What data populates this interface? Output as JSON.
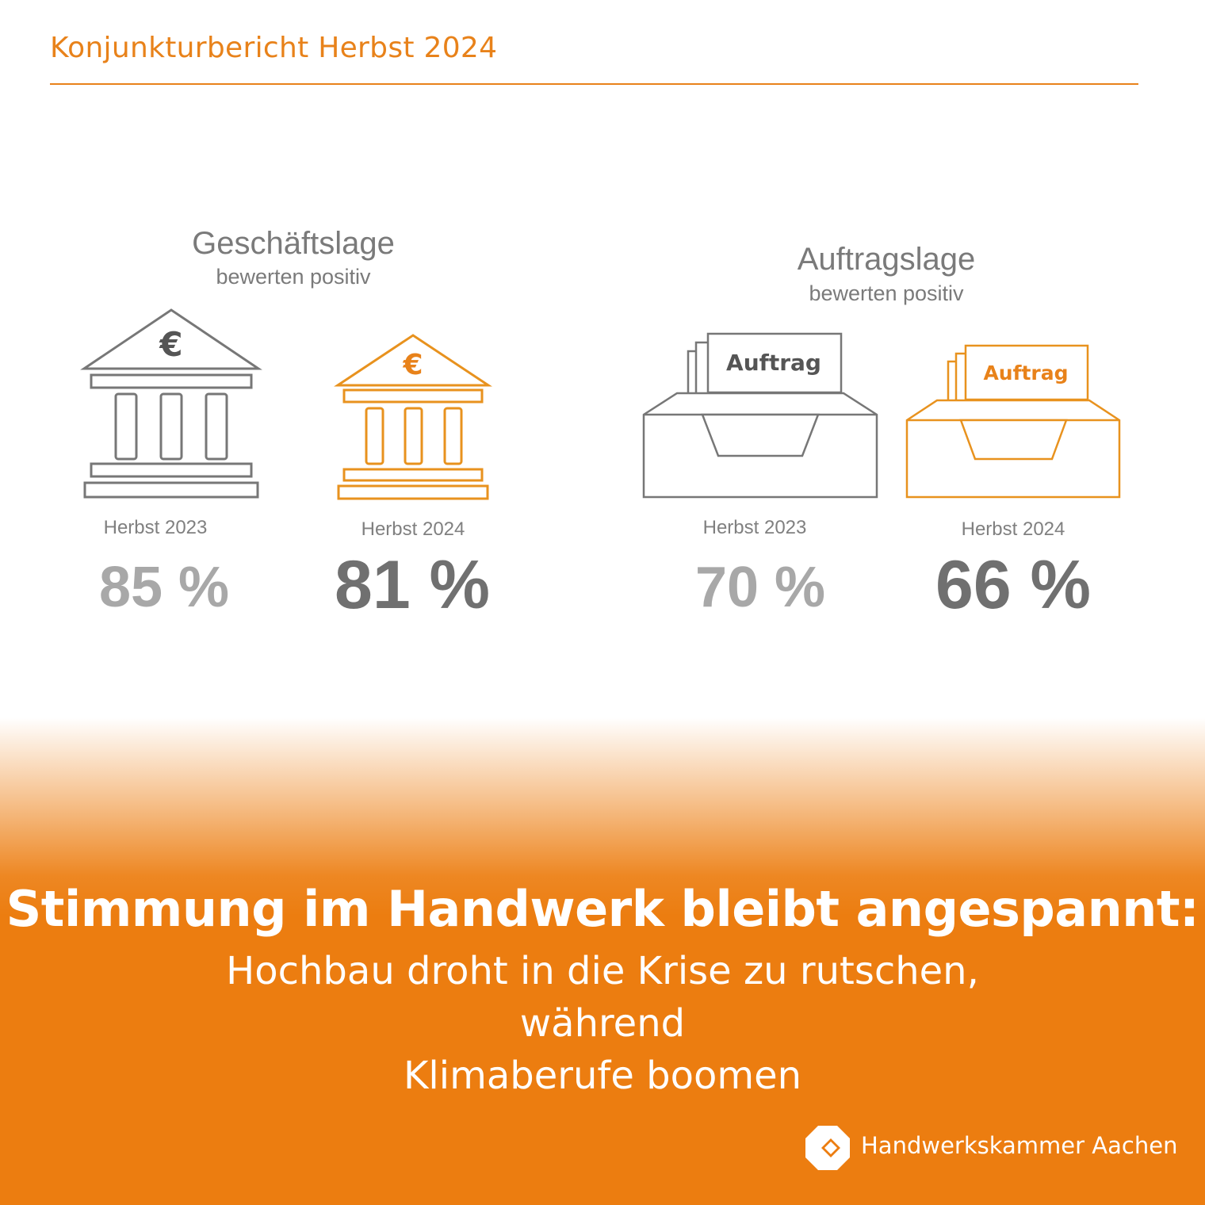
{
  "header": {
    "title": "Konjunkturbericht Herbst 2024"
  },
  "colors": {
    "accent": "#e8821a",
    "grey_icon": "#777777",
    "band": "#ec7d10"
  },
  "sections": [
    {
      "title": "Geschäftslage",
      "subtitle": "bewerten positiv",
      "icon": "bank-icon",
      "icon_symbol": "€",
      "items": [
        {
          "period": "Herbst 2023",
          "value": "85 %"
        },
        {
          "period": "Herbst 2024",
          "value": "81 %"
        }
      ]
    },
    {
      "title": "Auftragslage",
      "subtitle": "bewerten positiv",
      "icon": "order-tray-icon",
      "icon_label": "Auftrag",
      "items": [
        {
          "period": "Herbst 2023",
          "value": "70 %"
        },
        {
          "period": "Herbst 2024",
          "value": "66 %"
        }
      ]
    }
  ],
  "headline": "Stimmung im Handwerk bleibt angespannt:",
  "subline_1": "Hochbau droht in die Krise zu rutschen, während",
  "subline_2": "Klimaberufe boomen",
  "logo": {
    "name": "Handwerkskammer Aachen",
    "icon": "hwk-logo-icon"
  }
}
